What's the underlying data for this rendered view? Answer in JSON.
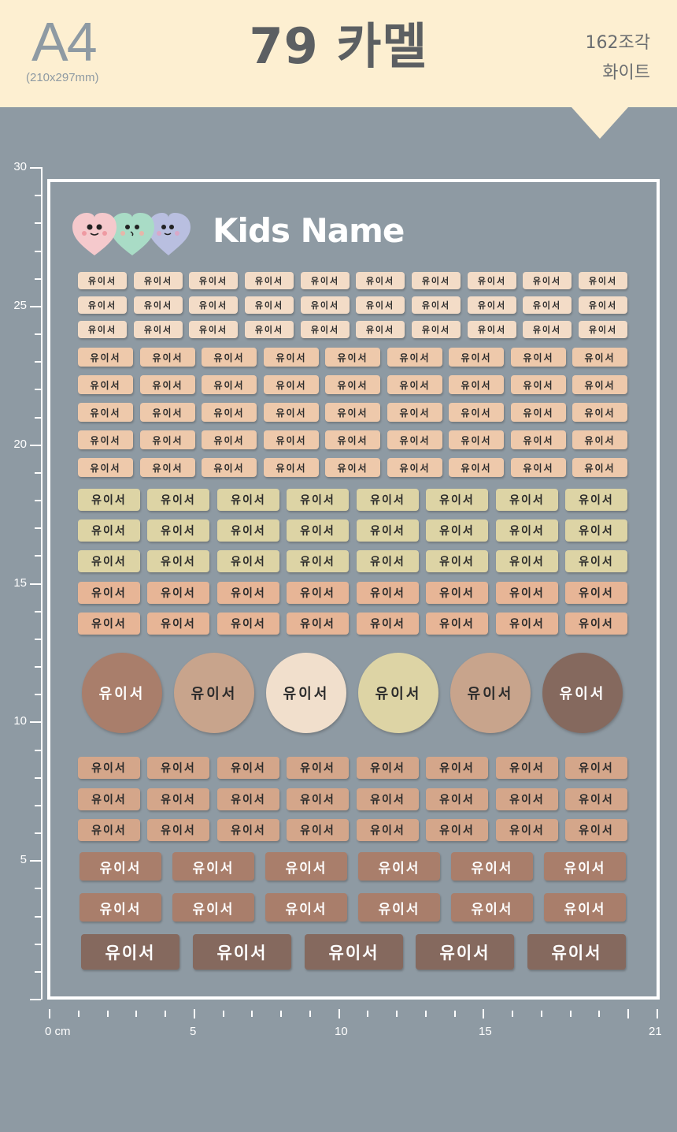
{
  "header": {
    "paper_size": "A4",
    "paper_dims": "(210x297mm)",
    "title": "79 카멜",
    "piece_count": "162조각",
    "color_name": "화이트"
  },
  "sheet": {
    "brand_text": "Kids Name",
    "label_text": "유이서"
  },
  "ruler": {
    "vertical_labels": [
      "30",
      "25",
      "20",
      "15",
      "10",
      "5"
    ],
    "horizontal_labels": [
      "0 cm",
      "5",
      "10",
      "15",
      "21"
    ]
  },
  "colors": {
    "header_bg": "#fdefd1",
    "page_bg": "#8e9aa3",
    "peach_light": "#f3dcc7",
    "peach": "#eec9ab",
    "khaki": "#ddd4a5",
    "salmon": "#e7b596",
    "tan": "#d4a68a",
    "mocha": "#a97e6b",
    "brown": "#85695e",
    "circle_colors": [
      "#a97e6b",
      "#c8a48c",
      "#f1dfcc",
      "#ddd4a5",
      "#c8a48c",
      "#85695e"
    ]
  },
  "icons": [
    "heart-pink-icon",
    "heart-mint-icon",
    "heart-lavender-icon"
  ]
}
